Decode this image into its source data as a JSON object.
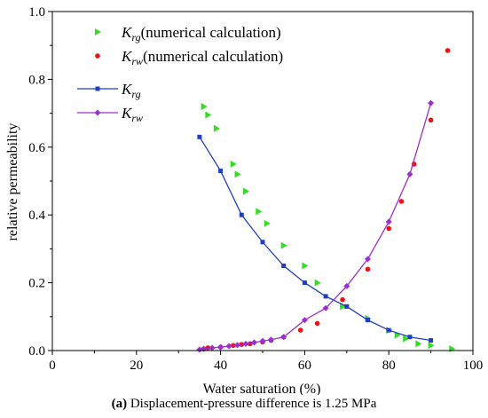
{
  "chart_data": {
    "type": "scatter",
    "xlabel": "Water saturation (%)",
    "ylabel": "relative permeability",
    "xlim": [
      0,
      100
    ],
    "ylim": [
      0,
      1.0
    ],
    "xticks": [
      "0",
      "20",
      "40",
      "60",
      "80",
      "100"
    ],
    "yticks": [
      "0.0",
      "0.2",
      "0.4",
      "0.6",
      "0.8",
      "1.0"
    ],
    "legend_position": "top-left",
    "series": [
      {
        "name": "Krg(numerical calculation)",
        "name_base": "K",
        "name_sub": "rg",
        "name_suffix": "(numerical calculation)",
        "style": "triangle",
        "color": "#33dd22",
        "x": [
          36,
          37,
          39,
          43,
          44,
          46,
          49,
          51,
          55,
          60,
          63,
          69,
          75,
          80,
          82,
          84,
          87,
          90,
          95
        ],
        "y": [
          0.72,
          0.695,
          0.655,
          0.55,
          0.52,
          0.47,
          0.41,
          0.375,
          0.31,
          0.25,
          0.2,
          0.13,
          0.095,
          0.06,
          0.045,
          0.035,
          0.02,
          0.015,
          0.005
        ]
      },
      {
        "name": "Krw(numerical calculation)",
        "name_base": "K",
        "name_sub": "rw",
        "name_suffix": "(numerical calculation)",
        "style": "dot",
        "color": "#ee1111",
        "x": [
          36,
          37,
          40,
          43,
          45,
          47,
          50,
          52,
          55,
          59,
          63,
          69,
          75,
          80,
          83,
          86,
          90,
          94
        ],
        "y": [
          0.005,
          0.008,
          0.01,
          0.015,
          0.018,
          0.02,
          0.025,
          0.03,
          0.04,
          0.06,
          0.08,
          0.15,
          0.24,
          0.36,
          0.44,
          0.55,
          0.68,
          0.885
        ]
      },
      {
        "name": "Krg",
        "name_base": "K",
        "name_sub": "rg",
        "name_suffix": "",
        "style": "line-square",
        "color": "#1f3fbf",
        "x": [
          35,
          40,
          45,
          50,
          55,
          60,
          65,
          70,
          75,
          80,
          85,
          90
        ],
        "y": [
          0.63,
          0.53,
          0.4,
          0.32,
          0.25,
          0.2,
          0.16,
          0.13,
          0.09,
          0.06,
          0.04,
          0.03
        ]
      },
      {
        "name": "Krw",
        "name_base": "K",
        "name_sub": "rw",
        "name_suffix": "",
        "style": "line-diamond",
        "color": "#9b30d0",
        "x": [
          35,
          36,
          38,
          40,
          42,
          44,
          46,
          48,
          50,
          52,
          55,
          60,
          65,
          70,
          75,
          80,
          85,
          90
        ],
        "y": [
          0.003,
          0.005,
          0.008,
          0.01,
          0.013,
          0.016,
          0.02,
          0.024,
          0.028,
          0.032,
          0.04,
          0.09,
          0.125,
          0.19,
          0.27,
          0.38,
          0.52,
          0.73
        ]
      }
    ]
  },
  "caption": {
    "label": "(a)",
    "text": " Displacement-pressure difference is 1.25 MPa"
  }
}
